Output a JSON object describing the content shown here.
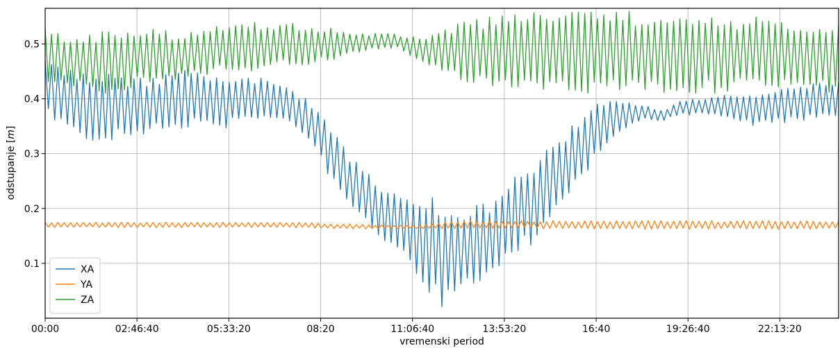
{
  "chart_data": {
    "type": "line",
    "title": "",
    "xlabel": "vremenski period",
    "ylabel_parts": {
      "text": "odstupanje [",
      "unit": "m",
      "close": "]"
    },
    "x_range_seconds": [
      0,
      86400
    ],
    "ylim": [
      0.0,
      0.565
    ],
    "x_ticks": [
      {
        "value": 0,
        "label": "00:00"
      },
      {
        "value": 10000,
        "label": "02:46:40"
      },
      {
        "value": 20000,
        "label": "05:33:20"
      },
      {
        "value": 30000,
        "label": "08:20"
      },
      {
        "value": 40000,
        "label": "11:06:40"
      },
      {
        "value": 50000,
        "label": "13:53:20"
      },
      {
        "value": 60000,
        "label": "16:40"
      },
      {
        "value": 70000,
        "label": "19:26:40"
      },
      {
        "value": 80000,
        "label": "22:13:20"
      }
    ],
    "y_ticks": [
      {
        "value": 0.1,
        "label": "0.1"
      },
      {
        "value": 0.2,
        "label": "0.2"
      },
      {
        "value": 0.3,
        "label": "0.3"
      },
      {
        "value": 0.4,
        "label": "0.4"
      },
      {
        "value": 0.5,
        "label": "0.5"
      }
    ],
    "grid": true,
    "legend_position": "bottom-left",
    "x": [
      0,
      2400,
      4800,
      7200,
      9600,
      12000,
      14400,
      16800,
      19200,
      21600,
      24000,
      26400,
      28800,
      31200,
      33600,
      36000,
      38400,
      40800,
      43200,
      45600,
      48000,
      50400,
      52800,
      55200,
      57600,
      60000,
      62400,
      64800,
      67200,
      69600,
      72000,
      74400,
      76800,
      79200,
      81600,
      84000,
      86400
    ],
    "series": [
      {
        "name": "XA",
        "color": "#1f77b4",
        "upper": [
          0.47,
          0.46,
          0.44,
          0.45,
          0.44,
          0.44,
          0.45,
          0.46,
          0.44,
          0.44,
          0.44,
          0.42,
          0.4,
          0.35,
          0.29,
          0.25,
          0.23,
          0.22,
          0.22,
          0.21,
          0.21,
          0.25,
          0.28,
          0.32,
          0.36,
          0.39,
          0.4,
          0.39,
          0.38,
          0.4,
          0.4,
          0.41,
          0.41,
          0.42,
          0.42,
          0.43,
          0.44
        ],
        "lower": [
          0.37,
          0.34,
          0.32,
          0.32,
          0.33,
          0.34,
          0.34,
          0.35,
          0.34,
          0.36,
          0.36,
          0.35,
          0.32,
          0.25,
          0.2,
          0.15,
          0.12,
          0.06,
          0.02,
          0.04,
          0.07,
          0.11,
          0.13,
          0.17,
          0.23,
          0.29,
          0.33,
          0.36,
          0.36,
          0.37,
          0.37,
          0.36,
          0.35,
          0.35,
          0.36,
          0.36,
          0.37
        ]
      },
      {
        "name": "YA",
        "color": "#ff7f0e",
        "upper": [
          0.175,
          0.175,
          0.175,
          0.175,
          0.175,
          0.175,
          0.175,
          0.175,
          0.175,
          0.175,
          0.175,
          0.175,
          0.175,
          0.172,
          0.172,
          0.17,
          0.17,
          0.17,
          0.175,
          0.178,
          0.178,
          0.178,
          0.178,
          0.178,
          0.178,
          0.178,
          0.178,
          0.178,
          0.178,
          0.178,
          0.178,
          0.178,
          0.178,
          0.178,
          0.178,
          0.178,
          0.178
        ],
        "lower": [
          0.165,
          0.165,
          0.165,
          0.165,
          0.165,
          0.165,
          0.165,
          0.165,
          0.165,
          0.165,
          0.165,
          0.165,
          0.165,
          0.163,
          0.163,
          0.163,
          0.163,
          0.163,
          0.163,
          0.163,
          0.163,
          0.163,
          0.163,
          0.163,
          0.162,
          0.162,
          0.162,
          0.162,
          0.162,
          0.162,
          0.162,
          0.162,
          0.162,
          0.162,
          0.162,
          0.162,
          0.162
        ]
      },
      {
        "name": "ZA",
        "color": "#2ca02c",
        "upper": [
          0.53,
          0.52,
          0.52,
          0.53,
          0.53,
          0.53,
          0.52,
          0.53,
          0.54,
          0.54,
          0.54,
          0.54,
          0.53,
          0.53,
          0.52,
          0.52,
          0.52,
          0.51,
          0.53,
          0.54,
          0.55,
          0.56,
          0.56,
          0.56,
          0.56,
          0.56,
          0.56,
          0.56,
          0.56,
          0.55,
          0.55,
          0.55,
          0.55,
          0.55,
          0.54,
          0.54,
          0.54
        ],
        "lower": [
          0.43,
          0.42,
          0.41,
          0.41,
          0.42,
          0.43,
          0.43,
          0.44,
          0.45,
          0.45,
          0.45,
          0.46,
          0.46,
          0.47,
          0.48,
          0.49,
          0.49,
          0.47,
          0.45,
          0.43,
          0.42,
          0.42,
          0.41,
          0.41,
          0.41,
          0.41,
          0.41,
          0.41,
          0.41,
          0.41,
          0.41,
          0.41,
          0.42,
          0.42,
          0.42,
          0.42,
          0.4
        ]
      }
    ]
  }
}
